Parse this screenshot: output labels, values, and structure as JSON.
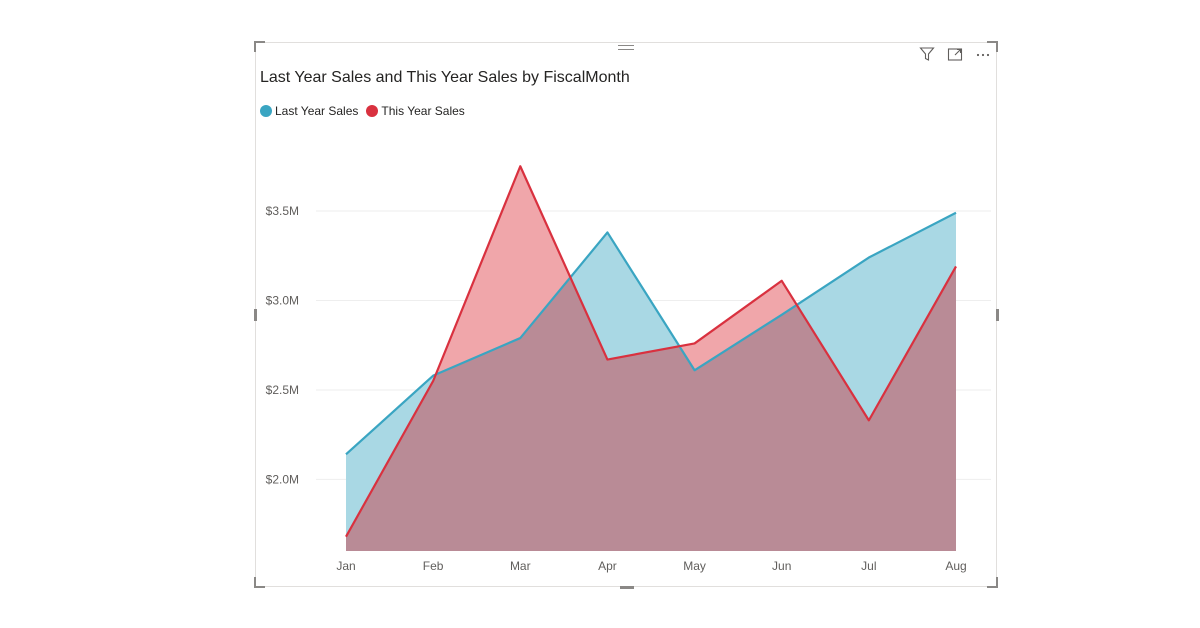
{
  "visual": {
    "toolbar": {
      "filter_icon": "filter-icon",
      "focus_icon": "focus-mode-icon",
      "more_icon": "more-options-icon"
    }
  },
  "chart_data": {
    "type": "area",
    "title": "Last Year Sales and This Year Sales by FiscalMonth",
    "xlabel": "",
    "ylabel": "",
    "categories": [
      "Jan",
      "Feb",
      "Mar",
      "Apr",
      "May",
      "Jun",
      "Jul",
      "Aug"
    ],
    "series": [
      {
        "name": "Last Year Sales",
        "color": "#3aa5c2",
        "fill": "#a9d8e4",
        "values": [
          2.14,
          2.58,
          2.79,
          3.38,
          2.61,
          2.92,
          3.24,
          3.49
        ]
      },
      {
        "name": "This Year Sales",
        "color": "#d9313f",
        "fill": "#f0a6aa",
        "values": [
          1.68,
          2.55,
          3.75,
          2.67,
          2.76,
          3.11,
          2.33,
          3.19
        ]
      }
    ],
    "overlap_fill": "#b98b96",
    "y_ticks": [
      {
        "value": 2.0,
        "label": "$2.0M"
      },
      {
        "value": 2.5,
        "label": "$2.5M"
      },
      {
        "value": 3.0,
        "label": "$3.0M"
      },
      {
        "value": 3.5,
        "label": "$3.5M"
      }
    ],
    "ylim": [
      1.6,
      3.88
    ],
    "grid": true,
    "legend_position": "top-left"
  }
}
